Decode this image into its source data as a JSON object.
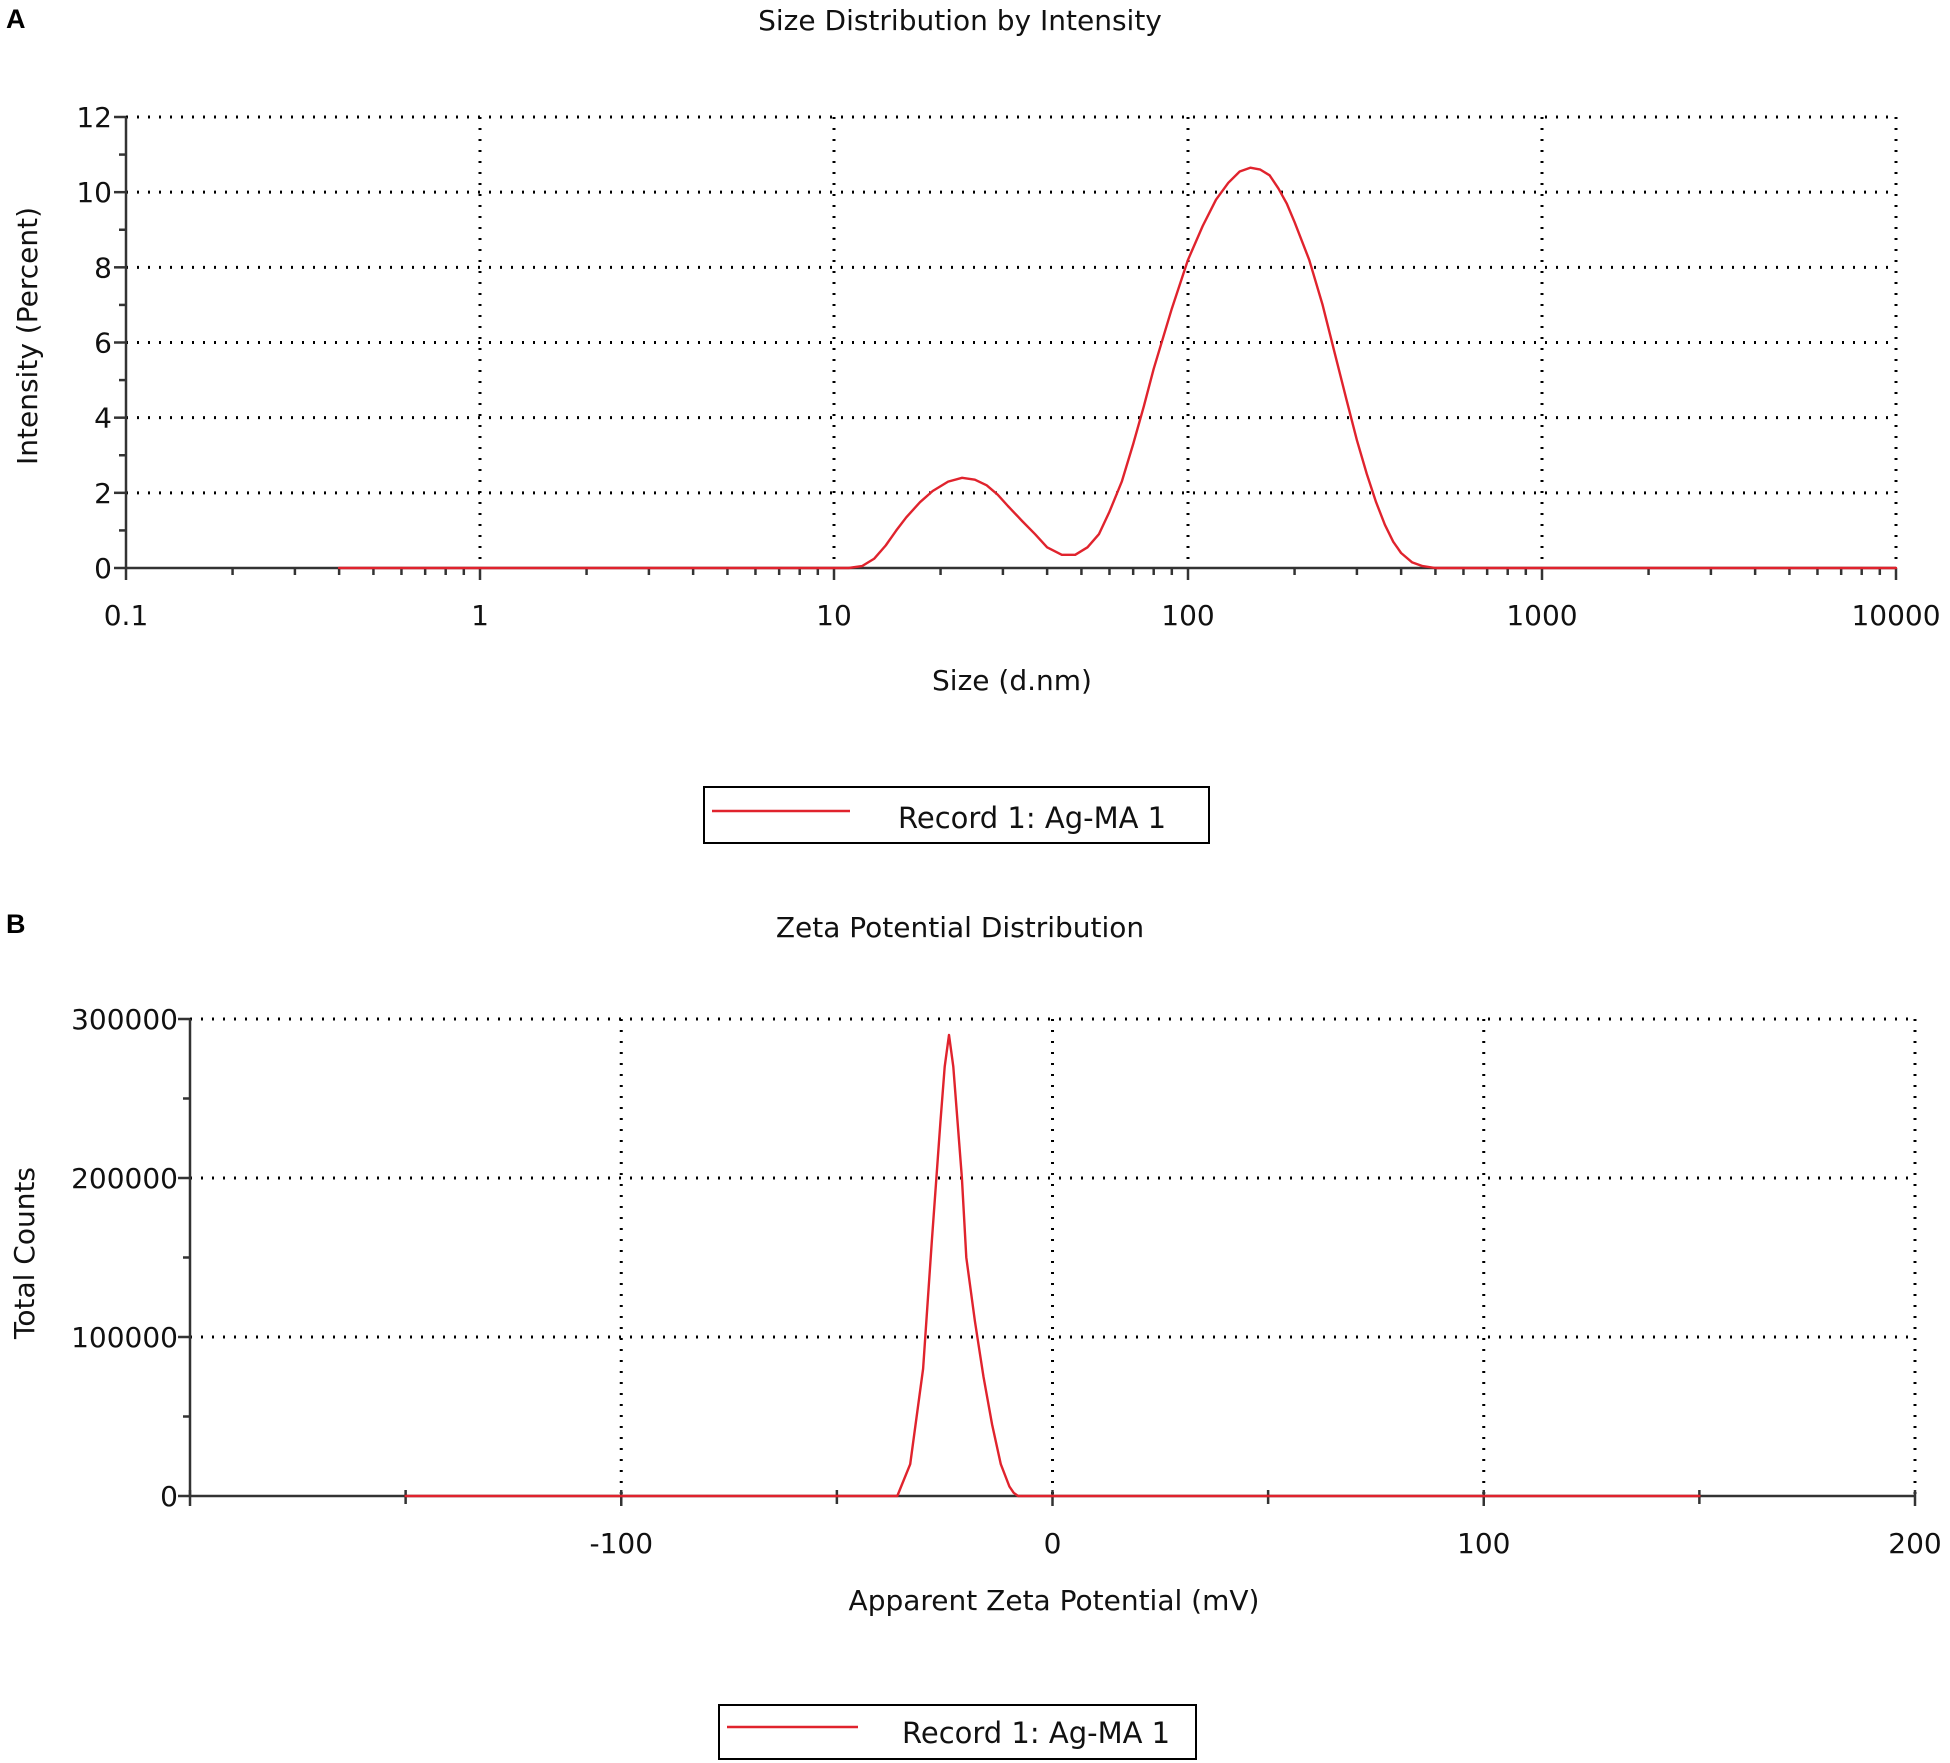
{
  "panels": [
    {
      "letter": "A"
    },
    {
      "letter": "B"
    }
  ],
  "chart_data": [
    {
      "type": "line",
      "title": "Size Distribution by Intensity",
      "xlabel": "Size (d.nm)",
      "ylabel": "Intensity (Percent)",
      "xscale": "log",
      "xlim": [
        0.1,
        10000
      ],
      "ylim": [
        0,
        12
      ],
      "xticks": [
        0.1,
        1,
        10,
        100,
        1000,
        10000
      ],
      "xtick_labels": [
        "0.1",
        "1",
        "10",
        "100",
        "1000",
        "10000"
      ],
      "yticks": [
        0,
        2,
        4,
        6,
        8,
        10,
        12
      ],
      "ytick_labels": [
        "0",
        "2",
        "4",
        "6",
        "8",
        "10",
        "12"
      ],
      "grid": true,
      "legend_position": "bottom-center",
      "colors": {
        "series": "#e0232d",
        "baseline": "#555555"
      },
      "series": [
        {
          "name": "Record 1: Ag-MA 1",
          "x": [
            0.4,
            1,
            5,
            10,
            11,
            12,
            13,
            14,
            15,
            16,
            17.5,
            19,
            21,
            23,
            25,
            27,
            29,
            31,
            34,
            37,
            40,
            44,
            48,
            52,
            56,
            60,
            65,
            70,
            75,
            80,
            90,
            100,
            110,
            120,
            130,
            140,
            150,
            160,
            170,
            180,
            190,
            200,
            220,
            240,
            260,
            280,
            300,
            320,
            340,
            360,
            380,
            400,
            430,
            460,
            500,
            540,
            600,
            1000,
            5000,
            10000
          ],
          "y": [
            0,
            0,
            0,
            0,
            0,
            0.05,
            0.25,
            0.6,
            1.0,
            1.35,
            1.75,
            2.05,
            2.3,
            2.4,
            2.35,
            2.2,
            1.95,
            1.65,
            1.25,
            0.9,
            0.55,
            0.35,
            0.35,
            0.55,
            0.9,
            1.5,
            2.3,
            3.3,
            4.3,
            5.3,
            6.9,
            8.2,
            9.1,
            9.8,
            10.25,
            10.55,
            10.65,
            10.6,
            10.45,
            10.1,
            9.7,
            9.2,
            8.2,
            7.0,
            5.7,
            4.5,
            3.4,
            2.5,
            1.75,
            1.15,
            0.7,
            0.4,
            0.15,
            0.05,
            0,
            0,
            0,
            0,
            0,
            0
          ]
        }
      ]
    },
    {
      "type": "line",
      "title": "Zeta Potential Distribution",
      "xlabel": "Apparent Zeta Potential (mV)",
      "ylabel": "Total Counts",
      "xscale": "linear",
      "xlim": [
        -200,
        200
      ],
      "ylim": [
        0,
        300000
      ],
      "xticks": [
        -100,
        0,
        100,
        200
      ],
      "xtick_labels": [
        "-100",
        "0",
        "100",
        "200"
      ],
      "yticks": [
        0,
        100000,
        200000,
        300000
      ],
      "ytick_labels": [
        "0",
        "100000",
        "200000",
        "300000"
      ],
      "grid": true,
      "legend_position": "bottom-center",
      "colors": {
        "series": "#e0232d",
        "baseline": "#555555"
      },
      "series": [
        {
          "name": "Record 1: Ag-MA 1",
          "x": [
            -150,
            -80,
            -38,
            -36,
            -33,
            -30,
            -28,
            -26,
            -25,
            -24,
            -23,
            -21,
            -20,
            -18,
            -16,
            -14,
            -12,
            -10,
            -9,
            -8,
            -7,
            -5,
            0,
            50,
            100,
            150
          ],
          "y": [
            0,
            0,
            0,
            0,
            20000,
            80000,
            160000,
            235000,
            270000,
            290000,
            270000,
            200000,
            150000,
            110000,
            75000,
            45000,
            20000,
            6000,
            2000,
            0,
            0,
            0,
            0,
            0,
            0,
            0
          ]
        }
      ]
    }
  ]
}
